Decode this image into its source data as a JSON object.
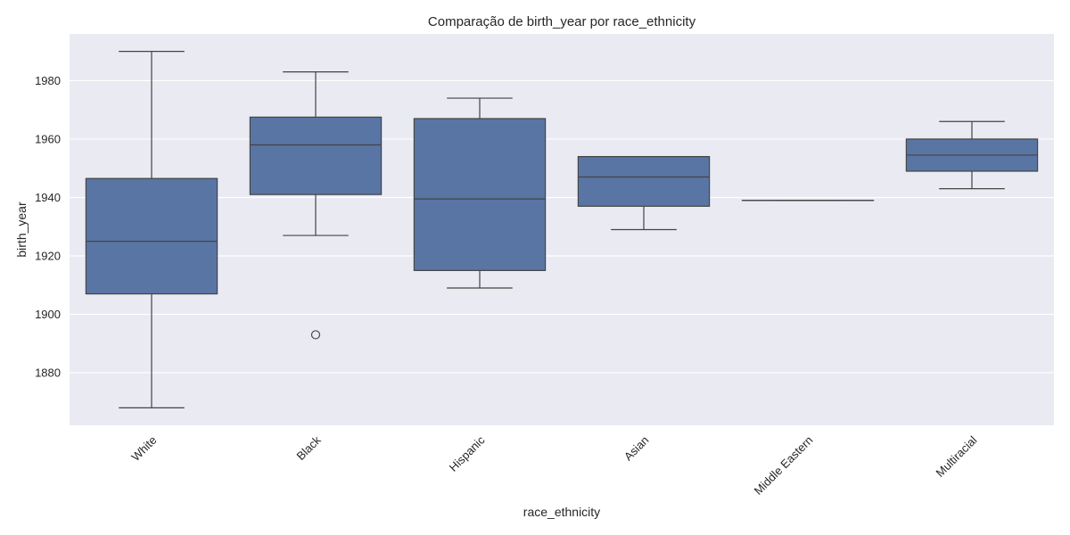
{
  "chart_data": {
    "type": "box",
    "title": "Comparação de birth_year por race_ethnicity",
    "xlabel": "race_ethnicity",
    "ylabel": "birth_year",
    "categories": [
      "White",
      "Black",
      "Hispanic",
      "Asian",
      "Middle Eastern",
      "Multiracial"
    ],
    "ylim": [
      1862,
      1996
    ],
    "yticks": [
      1880,
      1900,
      1920,
      1940,
      1960,
      1980
    ],
    "grid": true,
    "colors": {
      "box": "#5975a4",
      "line": "#444444",
      "background": "#eaeaf2",
      "grid": "#ffffff"
    },
    "boxes": [
      {
        "category": "White",
        "whisker_low": 1868,
        "q1": 1907,
        "median": 1925,
        "q3": 1946.5,
        "whisker_high": 1990,
        "outliers": []
      },
      {
        "category": "Black",
        "whisker_low": 1927,
        "q1": 1941,
        "median": 1958,
        "q3": 1967.5,
        "whisker_high": 1983,
        "outliers": [
          1893
        ]
      },
      {
        "category": "Hispanic",
        "whisker_low": 1909,
        "q1": 1915,
        "median": 1939.5,
        "q3": 1967,
        "whisker_high": 1974,
        "outliers": []
      },
      {
        "category": "Asian",
        "whisker_low": 1929,
        "q1": 1937,
        "median": 1947,
        "q3": 1954,
        "whisker_high": 1954,
        "outliers": []
      },
      {
        "category": "Middle Eastern",
        "whisker_low": 1939,
        "q1": 1939,
        "median": 1939,
        "q3": 1939,
        "whisker_high": 1939,
        "outliers": []
      },
      {
        "category": "Multiracial",
        "whisker_low": 1943,
        "q1": 1949,
        "median": 1954.5,
        "q3": 1960,
        "whisker_high": 1966,
        "outliers": []
      }
    ]
  }
}
